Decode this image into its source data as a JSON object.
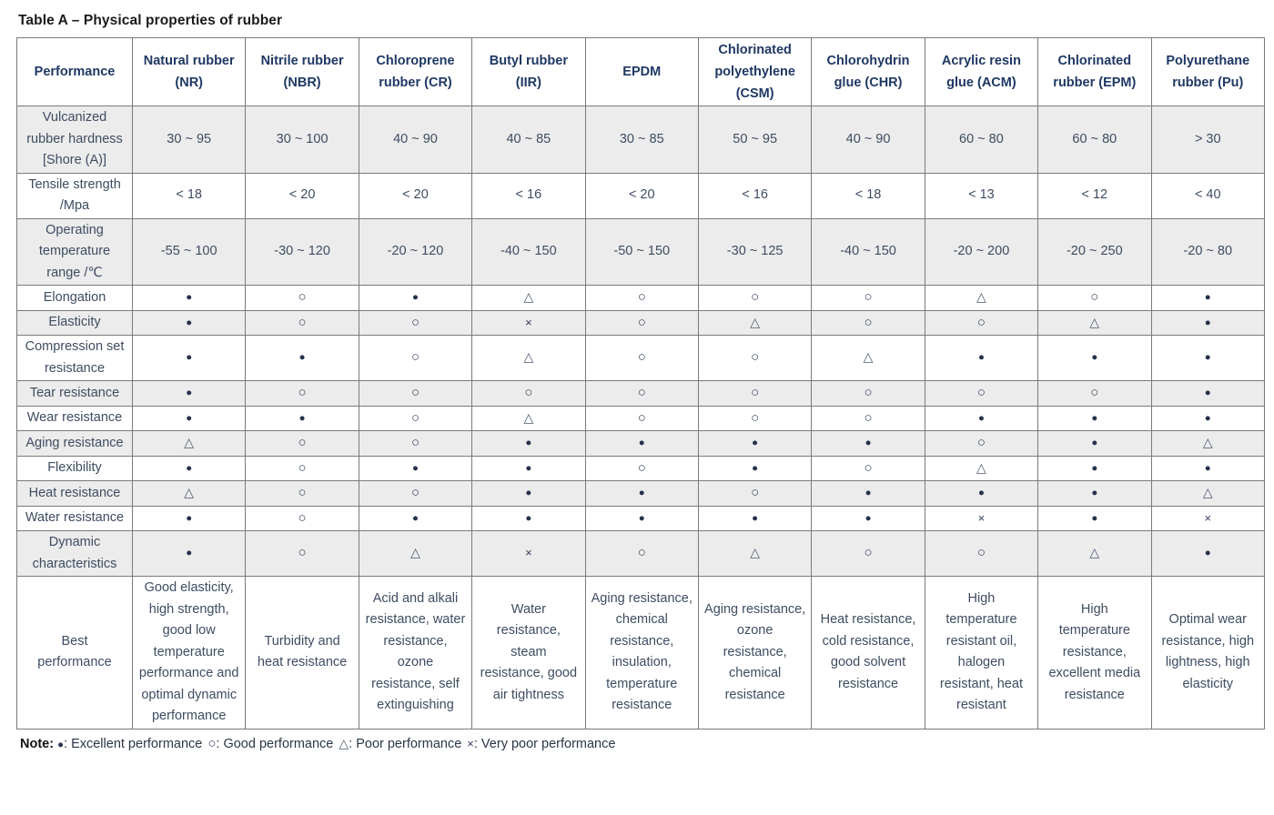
{
  "title": "Table A – Physical properties of rubber",
  "table": {
    "headers": [
      "Performance",
      "Natural rubber (NR)",
      "Nitrile rubber (NBR)",
      "Chloroprene rubber (CR)",
      "Butyl rubber (IIR)",
      "EPDM",
      "Chlorinated polyethylene (CSM)",
      "Chlorohydrin glue (CHR)",
      "Acrylic resin glue (ACM)",
      "Chlorinated rubber (EPM)",
      "Polyurethane rubber (Pu)"
    ],
    "rows": [
      {
        "label": "Vulcanized rubber hardness [Shore (A)]",
        "values": [
          "30 ~ 95",
          "30 ~ 100",
          "40 ~ 90",
          "40 ~ 85",
          "30 ~ 85",
          "50 ~ 95",
          "40 ~ 90",
          "60 ~ 80",
          "60 ~ 80",
          "> 30"
        ]
      },
      {
        "label": "Tensile strength /Mpa",
        "values": [
          "< 18",
          "< 20",
          "< 20",
          "< 16",
          "< 20",
          "< 16",
          "< 18",
          "< 13",
          "< 12",
          "< 40"
        ]
      },
      {
        "label": "Operating temperature range /℃",
        "values": [
          "-55 ~ 100",
          "-30 ~ 120",
          "-20 ~ 120",
          "-40 ~ 150",
          "-50 ~ 150",
          "-30 ~ 125",
          "-40 ~ 150",
          "-20 ~ 200",
          "-20 ~ 250",
          "-20 ~ 80"
        ]
      },
      {
        "label": "Elongation",
        "values": [
          "●",
          "○",
          "●",
          "△",
          "○",
          "○",
          "○",
          "△",
          "○",
          "●"
        ]
      },
      {
        "label": "Elasticity",
        "values": [
          "●",
          "○",
          "○",
          "×",
          "○",
          "△",
          "○",
          "○",
          "△",
          "●"
        ]
      },
      {
        "label": "Compression set resistance",
        "values": [
          "●",
          "●",
          "○",
          "△",
          "○",
          "○",
          "△",
          "●",
          "●",
          "●"
        ]
      },
      {
        "label": "Tear resistance",
        "values": [
          "●",
          "○",
          "○",
          "○",
          "○",
          "○",
          "○",
          "○",
          "○",
          "●"
        ]
      },
      {
        "label": "Wear resistance",
        "values": [
          "●",
          "●",
          "○",
          "△",
          "○",
          "○",
          "○",
          "●",
          "●",
          "●"
        ]
      },
      {
        "label": "Aging resistance",
        "values": [
          "△",
          "○",
          "○",
          "●",
          "●",
          "●",
          "●",
          "○",
          "●",
          "△"
        ]
      },
      {
        "label": "Flexibility",
        "values": [
          "●",
          "○",
          "●",
          "●",
          "○",
          "●",
          "○",
          "△",
          "●",
          "●"
        ]
      },
      {
        "label": "Heat resistance",
        "values": [
          "△",
          "○",
          "○",
          "●",
          "●",
          "○",
          "●",
          "●",
          "●",
          "△"
        ]
      },
      {
        "label": "Water resistance",
        "values": [
          "●",
          "○",
          "●",
          "●",
          "●",
          "●",
          "●",
          "×",
          "●",
          "×"
        ]
      },
      {
        "label": "Dynamic characteristics",
        "values": [
          "●",
          "○",
          "△",
          "×",
          "○",
          "△",
          "○",
          "○",
          "△",
          "●"
        ]
      },
      {
        "label": "Best performance",
        "values": [
          "Good elasticity, high strength, good low temperature performance and optimal dynamic performance",
          "Turbidity and heat resistance",
          "Acid and alkali resistance, water resistance, ozone resistance, self extinguishing",
          "Water resistance, steam resistance, good air tightness",
          "Aging resistance, chemical resistance, insulation, temperature resistance",
          "Aging resistance, ozone resistance, chemical resistance",
          "Heat resistance, cold resistance, good solvent resistance",
          "High temperature resistant oil, halogen resistant, heat resistant",
          "High temperature resistance, excellent media resistance",
          "Optimal wear resistance, high lightness, high elasticity"
        ]
      }
    ]
  },
  "legend": {
    "label": "Note:",
    "items": [
      {
        "symbol": "●",
        "text": ": Excellent performance"
      },
      {
        "symbol": "○",
        "text": ": Good performance"
      },
      {
        "symbol": "△",
        "text": ": Poor performance"
      },
      {
        "symbol": "×",
        "text": ": Very poor performance"
      }
    ]
  },
  "colors": {
    "header_text": "#1F3864",
    "body_text": "#3E4C61",
    "stripe_background": "#ececec",
    "border": "#7a7a7a",
    "title_text": "#1a1a1a"
  }
}
